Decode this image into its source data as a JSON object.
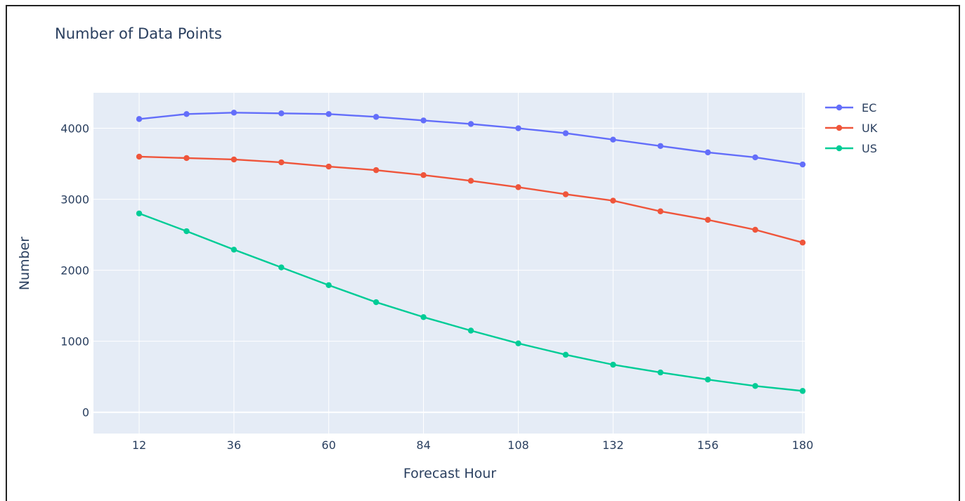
{
  "chart_data": {
    "type": "line",
    "title": "Number of Data Points",
    "xlabel": "Forecast Hour",
    "ylabel": "Number",
    "xlim": [
      0,
      180
    ],
    "ylim": [
      -300,
      4500
    ],
    "x_ticks": [
      12,
      36,
      60,
      84,
      108,
      132,
      156,
      180
    ],
    "y_ticks": [
      0,
      1000,
      2000,
      3000,
      4000
    ],
    "grid": true,
    "legend_position": "top-right",
    "x": [
      12,
      24,
      36,
      48,
      60,
      72,
      84,
      96,
      108,
      120,
      132,
      144,
      156,
      168,
      180
    ],
    "series": [
      {
        "name": "EC",
        "color": "#636efa",
        "values": [
          4130,
          4200,
          4220,
          4210,
          4200,
          4160,
          4110,
          4060,
          4000,
          3930,
          3840,
          3750,
          3660,
          3590,
          3490
        ]
      },
      {
        "name": "UK",
        "color": "#ef553b",
        "values": [
          3600,
          3580,
          3560,
          3520,
          3460,
          3410,
          3340,
          3260,
          3170,
          3070,
          2980,
          2830,
          2710,
          2570,
          2390
        ]
      },
      {
        "name": "US",
        "color": "#00cc96",
        "values": [
          2800,
          2550,
          2290,
          2040,
          1790,
          1550,
          1340,
          1150,
          970,
          810,
          670,
          560,
          460,
          370,
          300
        ]
      }
    ],
    "plot_background": "#e5ecf6",
    "grid_color": "#ffffff",
    "text_color": "#2a3f5f"
  }
}
